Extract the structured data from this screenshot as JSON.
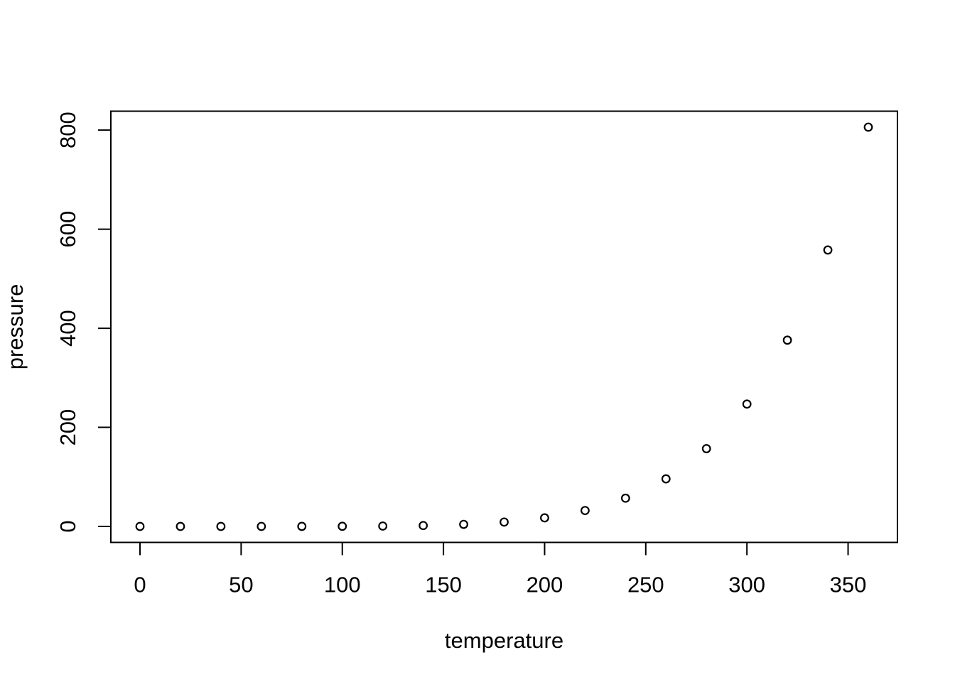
{
  "chart_data": {
    "type": "scatter",
    "xlabel": "temperature",
    "ylabel": "pressure",
    "x": [
      0,
      20,
      40,
      60,
      80,
      100,
      120,
      140,
      160,
      180,
      200,
      220,
      240,
      260,
      280,
      300,
      320,
      340,
      360
    ],
    "y": [
      0.0002,
      0.0012,
      0.006,
      0.03,
      0.09,
      0.27,
      0.75,
      1.85,
      4.2,
      8.8,
      17.3,
      32.1,
      57.0,
      96.0,
      157.0,
      247.0,
      376.0,
      558.0,
      806.0
    ],
    "x_ticks": [
      0,
      50,
      100,
      150,
      200,
      250,
      300,
      350
    ],
    "y_ticks": [
      0,
      200,
      400,
      600,
      800
    ],
    "xlim": [
      0,
      360
    ],
    "ylim": [
      0.0002,
      806
    ],
    "grid": false,
    "legend": null,
    "marker": "open-circle",
    "colors": {
      "points": "#000000",
      "axis": "#000000",
      "text": "#000000",
      "background": "#ffffff"
    }
  }
}
